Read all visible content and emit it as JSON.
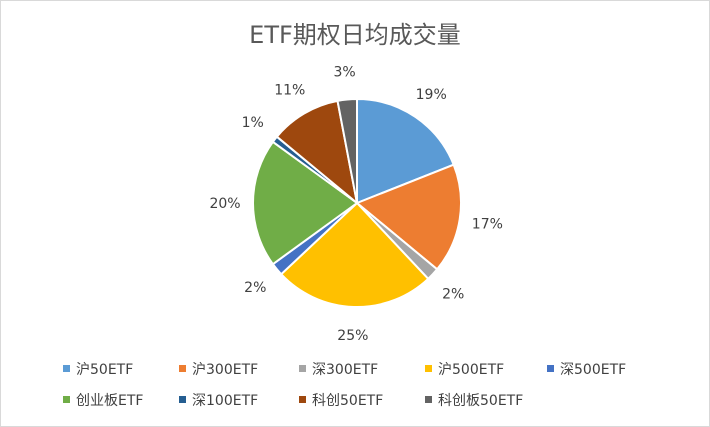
{
  "chart_data": {
    "type": "pie",
    "title": "ETF期权日均成交量",
    "categories": [
      "沪50ETF",
      "沪300ETF",
      "深300ETF",
      "沪500ETF",
      "深500ETF",
      "创业板ETF",
      "深100ETF",
      "科创50ETF",
      "科创板50ETF"
    ],
    "values": [
      19,
      17,
      2,
      25,
      2,
      20,
      1,
      11,
      3
    ],
    "data_labels": [
      "19%",
      "17%",
      "2%",
      "25%",
      "2%",
      "20%",
      "1%",
      "11%",
      "3%"
    ],
    "colors": [
      "#5b9bd5",
      "#ed7d31",
      "#a5a5a5",
      "#ffc000",
      "#4472c4",
      "#70ad47",
      "#255e91",
      "#9e480e",
      "#636363"
    ],
    "legend_position": "bottom",
    "start_angle_deg": 0,
    "direction": "clockwise"
  }
}
